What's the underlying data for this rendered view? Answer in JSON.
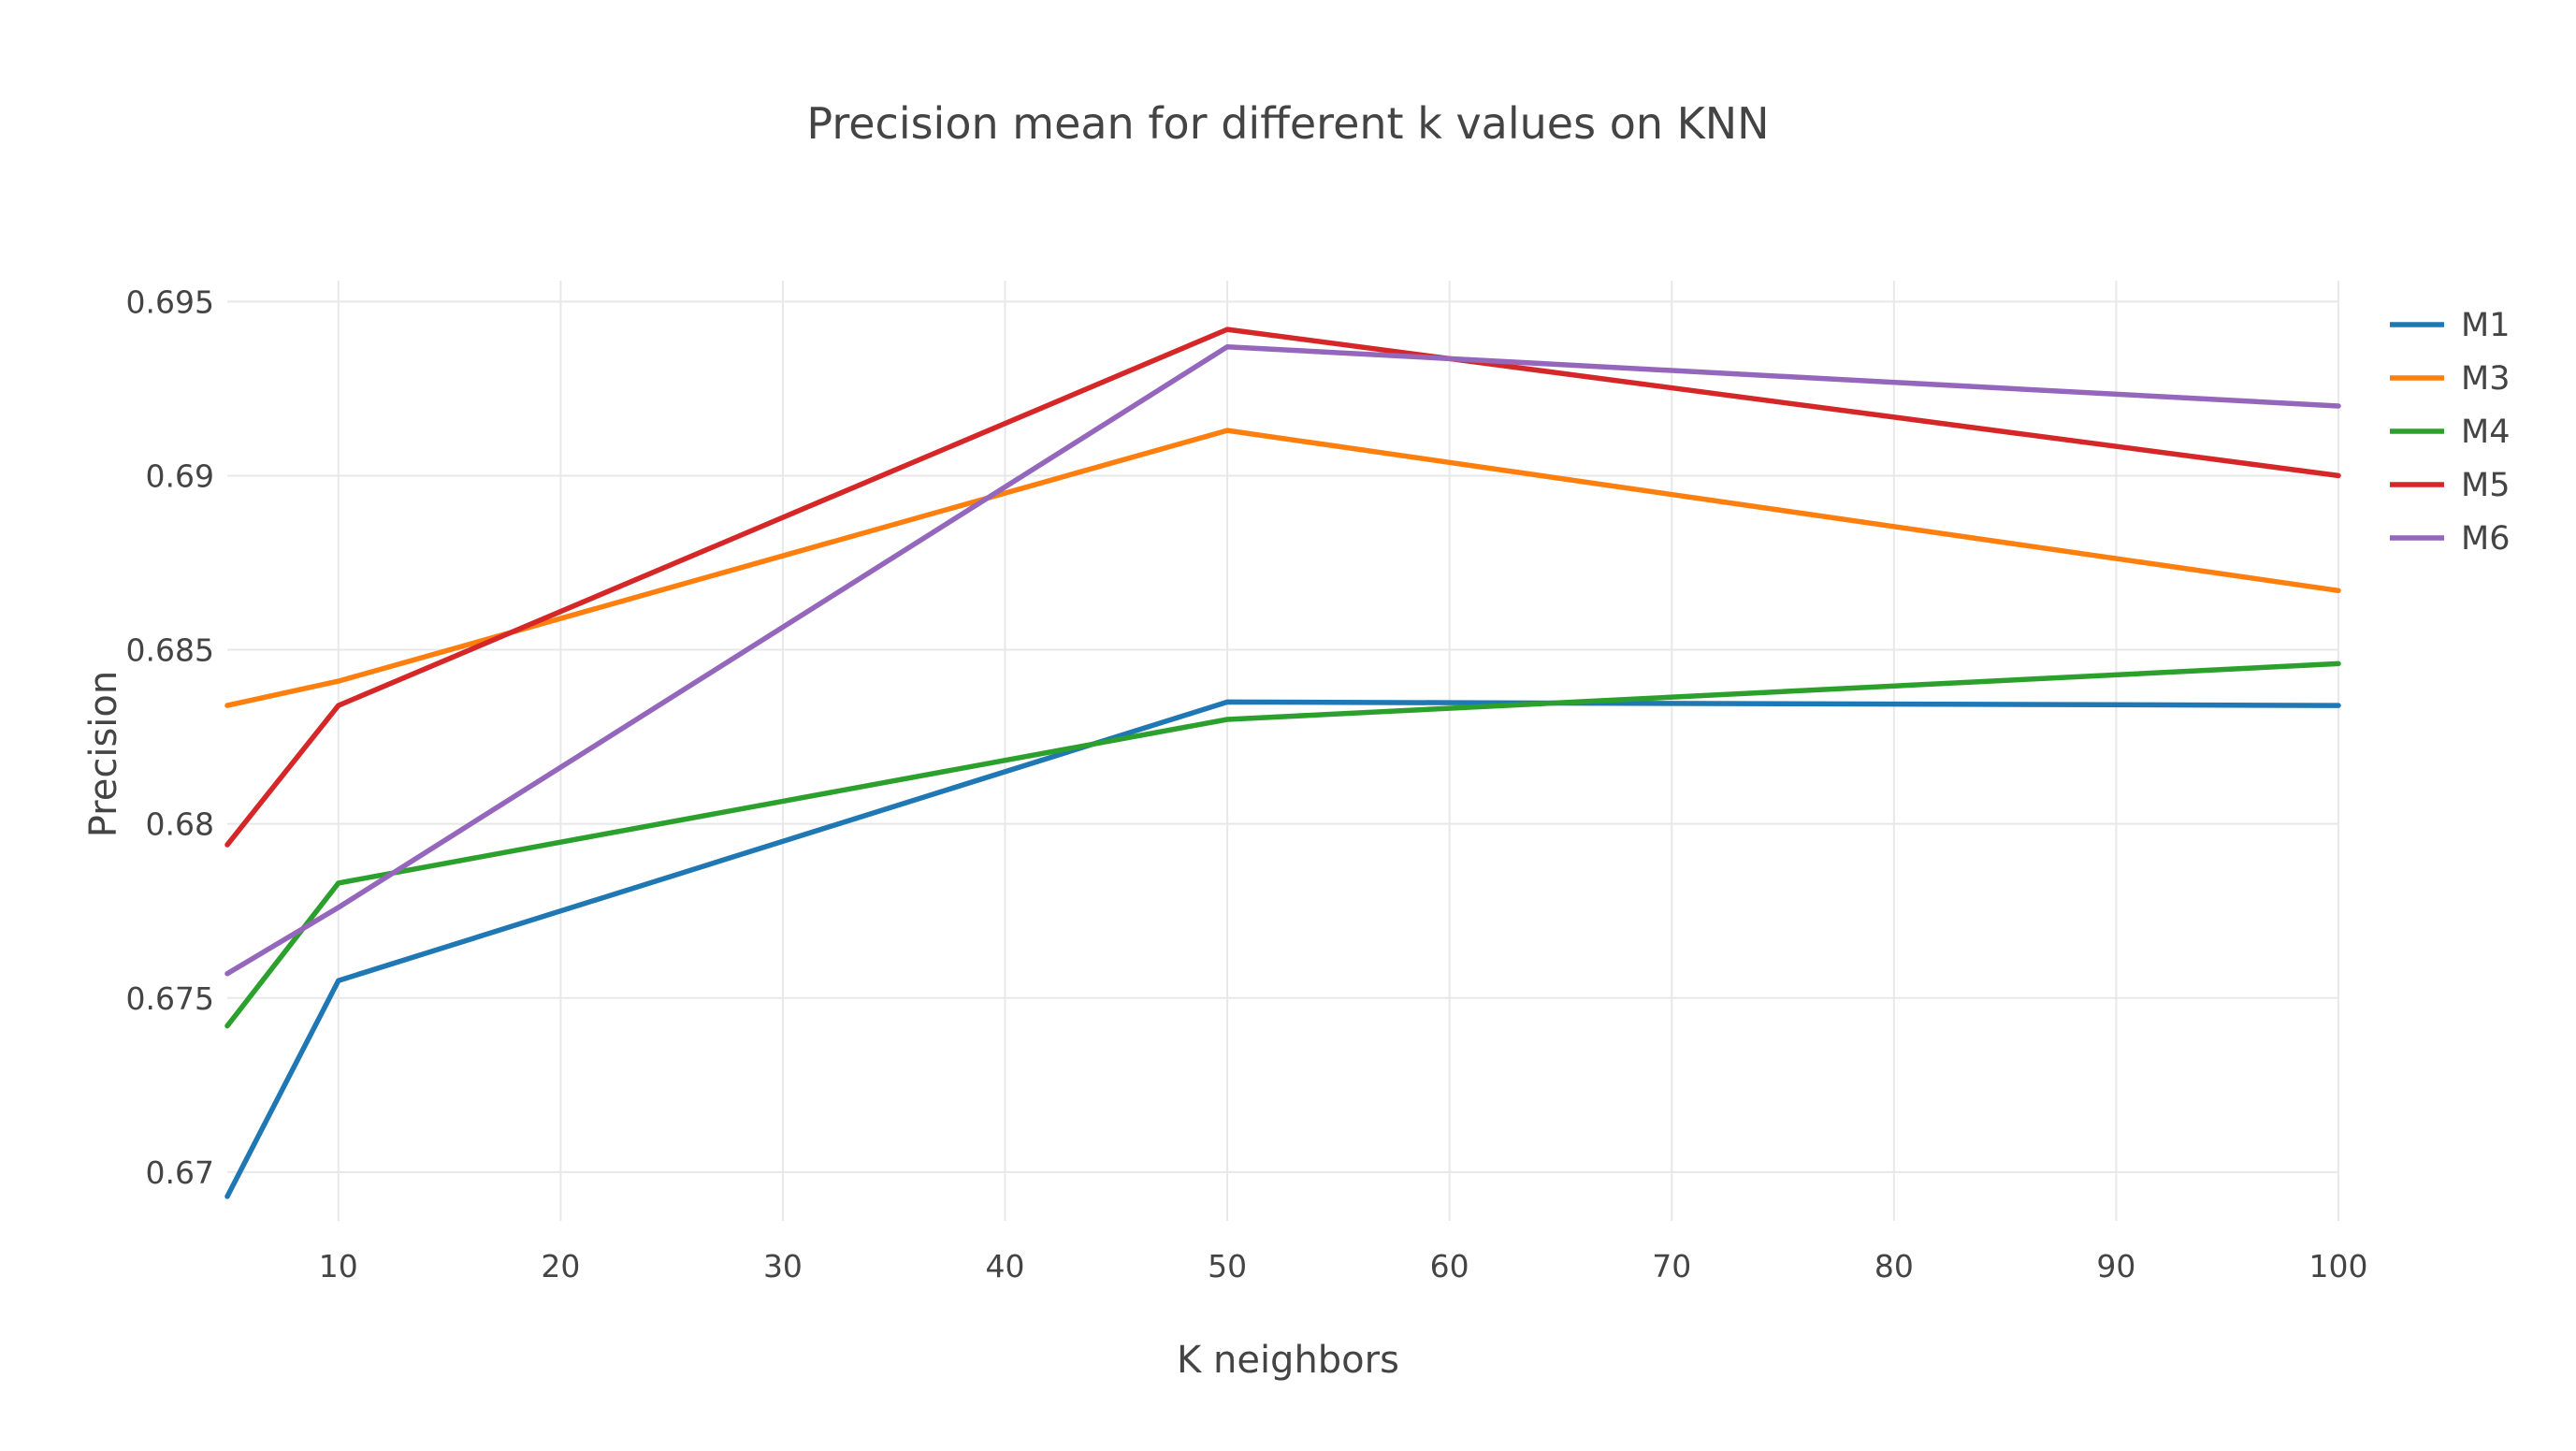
{
  "chart_data": {
    "type": "line",
    "title": "Precision mean for different k values on KNN",
    "xlabel": "K neighbors",
    "ylabel": "Precision",
    "x": [
      5,
      10,
      50,
      100
    ],
    "xlim": [
      5,
      100
    ],
    "ylim": [
      0.6686,
      0.6956
    ],
    "xticks": [
      10,
      20,
      30,
      40,
      50,
      60,
      70,
      80,
      90,
      100
    ],
    "xtick_labels": [
      "10",
      "20",
      "30",
      "40",
      "50",
      "60",
      "70",
      "80",
      "90",
      "100"
    ],
    "yticks": [
      0.67,
      0.675,
      0.68,
      0.685,
      0.69,
      0.695
    ],
    "ytick_labels": [
      "0.67",
      "0.675",
      "0.68",
      "0.685",
      "0.69",
      "0.695"
    ],
    "grid": true,
    "legend_position": "top-right",
    "series": [
      {
        "name": "M1",
        "color": "#1f77b4",
        "values": [
          0.6693,
          0.6755,
          0.6835,
          0.6834
        ]
      },
      {
        "name": "M3",
        "color": "#ff7f0e",
        "values": [
          0.6834,
          0.6841,
          0.6913,
          0.6867
        ]
      },
      {
        "name": "M4",
        "color": "#2ca02c",
        "values": [
          0.6742,
          0.6783,
          0.683,
          0.6846
        ]
      },
      {
        "name": "M5",
        "color": "#d62728",
        "values": [
          0.6794,
          0.6834,
          0.6942,
          0.69
        ]
      },
      {
        "name": "M6",
        "color": "#9467bd",
        "values": [
          0.6757,
          0.6776,
          0.6937,
          0.692
        ]
      }
    ]
  }
}
